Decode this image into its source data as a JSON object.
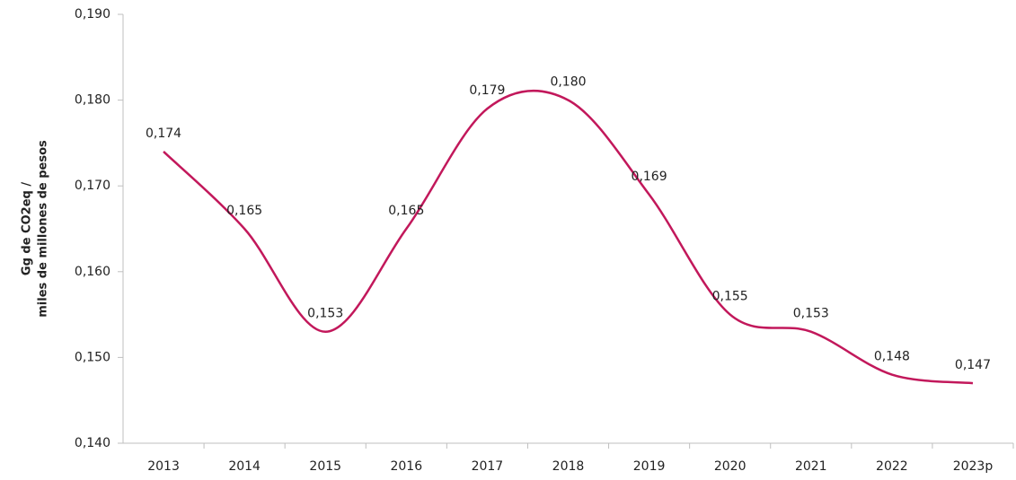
{
  "chart_data": {
    "type": "line",
    "y_label": [
      "Gg de CO2eq /",
      "miles de millones de pesos"
    ],
    "categories": [
      "2013",
      "2014",
      "2015",
      "2016",
      "2017",
      "2018",
      "2019",
      "2020",
      "2021",
      "2022",
      "2023p"
    ],
    "series": [
      {
        "name": null,
        "color": "#c2185b",
        "values": [
          0.174,
          0.165,
          0.153,
          0.165,
          0.179,
          0.18,
          0.169,
          0.155,
          0.153,
          0.148,
          0.147
        ],
        "value_labels": [
          "0,174",
          "0,165",
          "0,153",
          "0,165",
          "0,179",
          "0,180",
          "0,169",
          "0,155",
          "0,153",
          "0,148",
          "0,147"
        ]
      }
    ],
    "ylim": [
      0.14,
      0.19
    ],
    "yticks": [
      {
        "value": 0.14,
        "label": "0,140"
      },
      {
        "value": 0.15,
        "label": "0,150"
      },
      {
        "value": 0.16,
        "label": "0,160"
      },
      {
        "value": 0.17,
        "label": "0,170"
      },
      {
        "value": 0.18,
        "label": "0,180"
      },
      {
        "value": 0.19,
        "label": "0,190"
      }
    ],
    "smooth": true
  }
}
